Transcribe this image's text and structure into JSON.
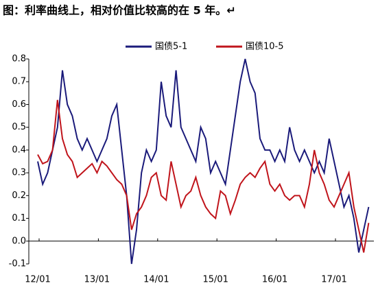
{
  "chart_data": {
    "type": "line",
    "title": "图：利率曲线上，相对价值比较高的在 5 年。↵",
    "categories": [
      "12/01",
      null,
      null,
      null,
      null,
      null,
      null,
      null,
      null,
      null,
      null,
      null,
      "13/01",
      null,
      null,
      null,
      null,
      null,
      null,
      null,
      null,
      null,
      null,
      null,
      "14/01",
      null,
      null,
      null,
      null,
      null,
      null,
      null,
      null,
      null,
      null,
      null,
      "15/01",
      null,
      null,
      null,
      null,
      null,
      null,
      null,
      null,
      null,
      null,
      null,
      "16/01",
      null,
      null,
      null,
      null,
      null,
      null,
      null,
      null,
      null,
      null,
      null,
      "17/01",
      null,
      null,
      null,
      null,
      null,
      null,
      null
    ],
    "series": [
      {
        "name": "国债5-1",
        "color": "#1a1a7a",
        "values": [
          0.35,
          0.25,
          0.3,
          0.4,
          0.5,
          0.75,
          0.6,
          0.55,
          0.45,
          0.4,
          0.45,
          0.4,
          0.35,
          0.4,
          0.45,
          0.55,
          0.6,
          0.4,
          0.2,
          -0.1,
          0.05,
          0.3,
          0.4,
          0.35,
          0.4,
          0.7,
          0.55,
          0.5,
          0.75,
          0.5,
          0.45,
          0.4,
          0.35,
          0.5,
          0.45,
          0.3,
          0.35,
          0.3,
          0.25,
          0.4,
          0.55,
          0.7,
          0.8,
          0.7,
          0.65,
          0.45,
          0.4,
          0.4,
          0.35,
          0.4,
          0.35,
          0.5,
          0.4,
          0.35,
          0.4,
          0.35,
          0.3,
          0.35,
          0.3,
          0.45,
          0.35,
          0.25,
          0.15,
          0.2,
          0.1,
          -0.05,
          0.05,
          0.15
        ]
      },
      {
        "name": "国债10-5",
        "color": "#c0141b",
        "values": [
          0.38,
          0.34,
          0.35,
          0.4,
          0.62,
          0.45,
          0.38,
          0.35,
          0.28,
          0.3,
          0.32,
          0.34,
          0.3,
          0.35,
          0.33,
          0.3,
          0.27,
          0.25,
          0.2,
          0.05,
          0.12,
          0.15,
          0.2,
          0.28,
          0.3,
          0.2,
          0.18,
          0.35,
          0.25,
          0.15,
          0.2,
          0.22,
          0.28,
          0.2,
          0.15,
          0.12,
          0.1,
          0.22,
          0.2,
          0.12,
          0.18,
          0.25,
          0.28,
          0.3,
          0.28,
          0.32,
          0.35,
          0.25,
          0.22,
          0.25,
          0.2,
          0.18,
          0.2,
          0.2,
          0.15,
          0.25,
          0.4,
          0.3,
          0.25,
          0.18,
          0.15,
          0.2,
          0.25,
          0.3,
          0.15,
          0.05,
          -0.05,
          0.08
        ]
      }
    ],
    "ylim": [
      -0.1,
      0.8
    ],
    "yticks": [
      -0.1,
      {
        "value": 0,
        "label": "0.0"
      },
      0.1,
      0.2,
      0.3,
      0.4,
      0.5,
      0.6,
      0.7,
      0.8
    ]
  }
}
